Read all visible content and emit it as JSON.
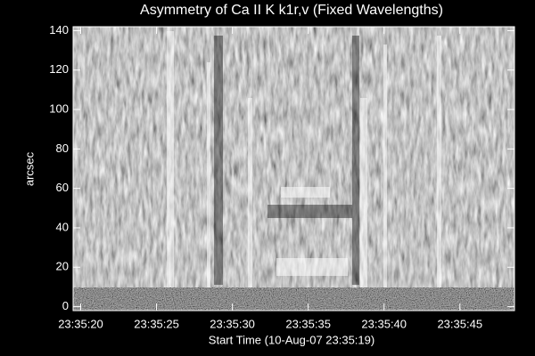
{
  "chart_data": {
    "type": "image",
    "title": "Asymmetry of Ca II K k1r,v (Fixed Wavelengths)",
    "xlabel": "Start Time (10-Aug-07 23:35:19)",
    "ylabel": "arcsec",
    "xlim": [
      19.5,
      48.6
    ],
    "xticks": [
      {
        "value": 20,
        "label": "23:35:20"
      },
      {
        "value": 25,
        "label": "23:35:25"
      },
      {
        "value": 30,
        "label": "23:35:30"
      },
      {
        "value": 35,
        "label": "23:35:35"
      },
      {
        "value": 40,
        "label": "23:35:40"
      },
      {
        "value": 45,
        "label": "23:35:45"
      }
    ],
    "ylim": [
      -2,
      142
    ],
    "yticks": [
      0,
      20,
      40,
      60,
      80,
      100,
      120,
      140
    ]
  }
}
